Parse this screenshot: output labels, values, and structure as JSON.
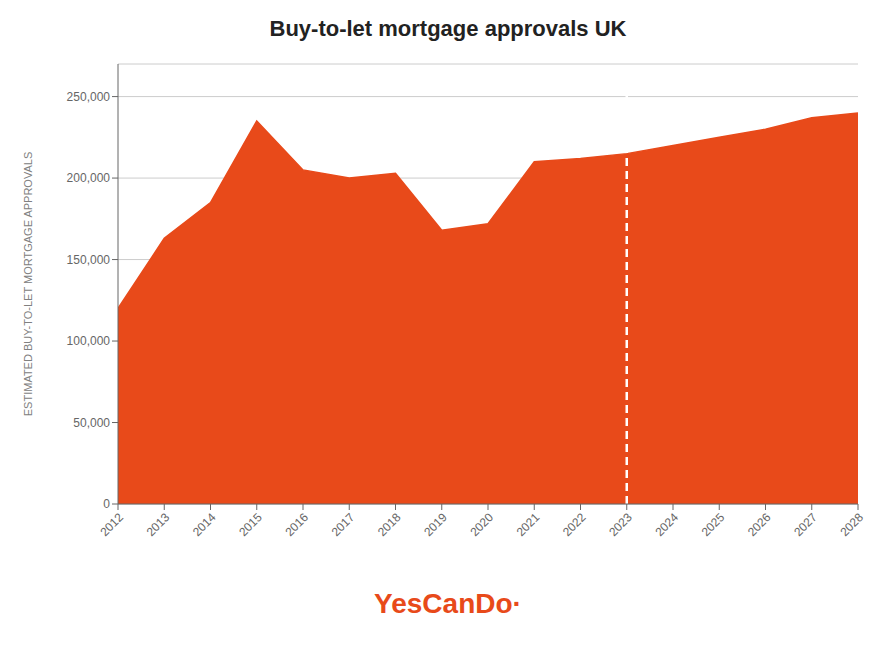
{
  "chart_data": {
    "type": "area",
    "title": "Buy-to-let mortgage approvals UK",
    "y_label": "ESTIMATED BUY-TO-LET MORTGAGE APPROVALS",
    "x": [
      2012,
      2013,
      2014,
      2015,
      2016,
      2017,
      2018,
      2019,
      2020,
      2021,
      2022,
      2023,
      2024,
      2025,
      2026,
      2027,
      2028
    ],
    "values": [
      120000,
      163000,
      185000,
      235000,
      205000,
      200000,
      203000,
      168000,
      172000,
      210000,
      212000,
      215000,
      220000,
      225000,
      230000,
      237000,
      240000
    ],
    "color": "#E84A1A",
    "xlim": [
      2012,
      2028
    ],
    "xticks": [
      2012,
      2013,
      2014,
      2015,
      2016,
      2017,
      2018,
      2019,
      2020,
      2021,
      2022,
      2023,
      2024,
      2025,
      2026,
      2027,
      2028
    ],
    "ylim": [
      0,
      270000
    ],
    "yticks": [
      0,
      {
        "value": 50000,
        "label": "50,000"
      },
      {
        "value": 100000,
        "label": "100,000"
      },
      {
        "value": 150000,
        "label": "150,000"
      },
      {
        "value": 200000,
        "label": "200,000"
      },
      {
        "value": 250000,
        "label": "250,000"
      }
    ],
    "grid": true,
    "reference_lines": [
      {
        "x": 2023,
        "color": "#FFFFFF",
        "line_style": "dashed"
      }
    ],
    "annotation": "YesCanDo·"
  }
}
